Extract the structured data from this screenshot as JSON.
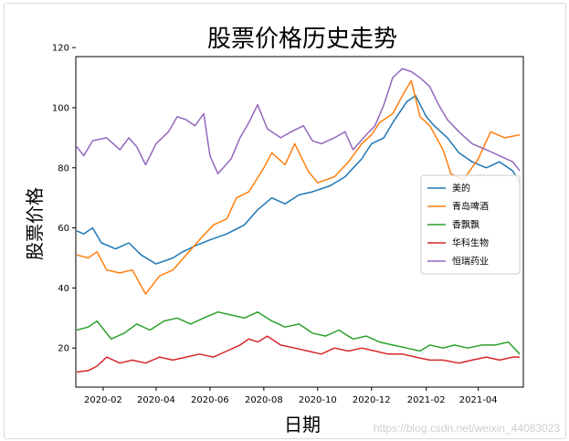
{
  "watermark": "https://blog.csdn.net/weixin_44083023",
  "chart_data": {
    "type": "line",
    "title": "股票价格历史走势",
    "xlabel": "日期",
    "ylabel": "股票价格",
    "ylim": [
      7,
      117
    ],
    "xlim": [
      "2020-01-01",
      "2021-05-22"
    ],
    "yticks": [
      20,
      40,
      60,
      80,
      100,
      120
    ],
    "xticks": [
      "2020-02",
      "2020-04",
      "2020-06",
      "2020-08",
      "2020-10",
      "2020-12",
      "2021-02",
      "2021-04"
    ],
    "legend_position": "center-right",
    "grid": false,
    "series": [
      {
        "name": "美的",
        "color": "#1f77b4",
        "points": [
          [
            "2020-01-02",
            59
          ],
          [
            "2020-01-10",
            58
          ],
          [
            "2020-01-20",
            60
          ],
          [
            "2020-01-30",
            55
          ],
          [
            "2020-02-15",
            53
          ],
          [
            "2020-03-01",
            55
          ],
          [
            "2020-03-15",
            51
          ],
          [
            "2020-04-01",
            48
          ],
          [
            "2020-04-20",
            50
          ],
          [
            "2020-05-01",
            52
          ],
          [
            "2020-05-15",
            54
          ],
          [
            "2020-06-01",
            56
          ],
          [
            "2020-06-20",
            58
          ],
          [
            "2020-07-10",
            61
          ],
          [
            "2020-07-25",
            66
          ],
          [
            "2020-08-10",
            70
          ],
          [
            "2020-08-25",
            68
          ],
          [
            "2020-09-10",
            71
          ],
          [
            "2020-09-25",
            72
          ],
          [
            "2020-10-15",
            74
          ],
          [
            "2020-11-01",
            77
          ],
          [
            "2020-11-20",
            83
          ],
          [
            "2020-12-01",
            88
          ],
          [
            "2020-12-15",
            90
          ],
          [
            "2020-12-25",
            95
          ],
          [
            "2021-01-10",
            102
          ],
          [
            "2021-01-20",
            104
          ],
          [
            "2021-02-01",
            97
          ],
          [
            "2021-02-10",
            94
          ],
          [
            "2021-02-25",
            90
          ],
          [
            "2021-03-10",
            85
          ],
          [
            "2021-03-25",
            82
          ],
          [
            "2021-04-10",
            80
          ],
          [
            "2021-04-25",
            82
          ],
          [
            "2021-05-10",
            79
          ],
          [
            "2021-05-18",
            75
          ]
        ]
      },
      {
        "name": "青岛啤酒",
        "color": "#ff7f0e",
        "points": [
          [
            "2020-01-02",
            51
          ],
          [
            "2020-01-15",
            50
          ],
          [
            "2020-01-25",
            52
          ],
          [
            "2020-02-05",
            46
          ],
          [
            "2020-02-20",
            45
          ],
          [
            "2020-03-05",
            46
          ],
          [
            "2020-03-20",
            38
          ],
          [
            "2020-04-05",
            44
          ],
          [
            "2020-04-20",
            46
          ],
          [
            "2020-05-05",
            51
          ],
          [
            "2020-05-20",
            56
          ],
          [
            "2020-06-05",
            61
          ],
          [
            "2020-06-20",
            63
          ],
          [
            "2020-07-01",
            70
          ],
          [
            "2020-07-15",
            72
          ],
          [
            "2020-08-01",
            80
          ],
          [
            "2020-08-10",
            85
          ],
          [
            "2020-08-25",
            81
          ],
          [
            "2020-09-05",
            88
          ],
          [
            "2020-09-20",
            79
          ],
          [
            "2020-10-01",
            75
          ],
          [
            "2020-10-20",
            77
          ],
          [
            "2020-11-05",
            82
          ],
          [
            "2020-11-20",
            88
          ],
          [
            "2020-12-01",
            91
          ],
          [
            "2020-12-10",
            95
          ],
          [
            "2020-12-25",
            98
          ],
          [
            "2021-01-05",
            104
          ],
          [
            "2021-01-15",
            109
          ],
          [
            "2021-01-25",
            97
          ],
          [
            "2021-02-05",
            94
          ],
          [
            "2021-02-20",
            86
          ],
          [
            "2021-03-01",
            78
          ],
          [
            "2021-03-15",
            76
          ],
          [
            "2021-04-01",
            83
          ],
          [
            "2021-04-15",
            92
          ],
          [
            "2021-05-01",
            90
          ],
          [
            "2021-05-18",
            91
          ]
        ]
      },
      {
        "name": "香飘飘",
        "color": "#2ca02c",
        "points": [
          [
            "2020-01-02",
            26
          ],
          [
            "2020-01-15",
            27
          ],
          [
            "2020-01-25",
            29
          ],
          [
            "2020-02-10",
            23
          ],
          [
            "2020-02-25",
            25
          ],
          [
            "2020-03-10",
            28
          ],
          [
            "2020-03-25",
            26
          ],
          [
            "2020-04-10",
            29
          ],
          [
            "2020-04-25",
            30
          ],
          [
            "2020-05-10",
            28
          ],
          [
            "2020-05-25",
            30
          ],
          [
            "2020-06-10",
            32
          ],
          [
            "2020-06-25",
            31
          ],
          [
            "2020-07-10",
            30
          ],
          [
            "2020-07-25",
            32
          ],
          [
            "2020-08-10",
            29
          ],
          [
            "2020-08-25",
            27
          ],
          [
            "2020-09-10",
            28
          ],
          [
            "2020-09-25",
            25
          ],
          [
            "2020-10-10",
            24
          ],
          [
            "2020-10-25",
            26
          ],
          [
            "2020-11-10",
            23
          ],
          [
            "2020-11-25",
            24
          ],
          [
            "2020-12-10",
            22
          ],
          [
            "2020-12-25",
            21
          ],
          [
            "2021-01-10",
            20
          ],
          [
            "2021-01-25",
            19
          ],
          [
            "2021-02-05",
            21
          ],
          [
            "2021-02-20",
            20
          ],
          [
            "2021-03-05",
            21
          ],
          [
            "2021-03-20",
            20
          ],
          [
            "2021-04-05",
            21
          ],
          [
            "2021-04-20",
            21
          ],
          [
            "2021-05-05",
            22
          ],
          [
            "2021-05-18",
            18
          ]
        ]
      },
      {
        "name": "华科生物",
        "color": "#d62728",
        "points": [
          [
            "2020-01-02",
            12
          ],
          [
            "2020-01-15",
            12.5
          ],
          [
            "2020-01-25",
            14
          ],
          [
            "2020-02-05",
            17
          ],
          [
            "2020-02-20",
            15
          ],
          [
            "2020-03-05",
            16
          ],
          [
            "2020-03-20",
            15
          ],
          [
            "2020-04-05",
            17
          ],
          [
            "2020-04-20",
            16
          ],
          [
            "2020-05-05",
            17
          ],
          [
            "2020-05-20",
            18
          ],
          [
            "2020-06-05",
            17
          ],
          [
            "2020-06-20",
            19
          ],
          [
            "2020-07-05",
            21
          ],
          [
            "2020-07-15",
            23
          ],
          [
            "2020-07-25",
            22
          ],
          [
            "2020-08-05",
            24
          ],
          [
            "2020-08-20",
            21
          ],
          [
            "2020-09-05",
            20
          ],
          [
            "2020-09-20",
            19
          ],
          [
            "2020-10-05",
            18
          ],
          [
            "2020-10-20",
            20
          ],
          [
            "2020-11-05",
            19
          ],
          [
            "2020-11-20",
            20
          ],
          [
            "2020-12-05",
            19
          ],
          [
            "2020-12-20",
            18
          ],
          [
            "2021-01-05",
            18
          ],
          [
            "2021-01-20",
            17
          ],
          [
            "2021-02-05",
            16
          ],
          [
            "2021-02-20",
            16
          ],
          [
            "2021-03-10",
            15
          ],
          [
            "2021-03-25",
            16
          ],
          [
            "2021-04-10",
            17
          ],
          [
            "2021-04-25",
            16
          ],
          [
            "2021-05-10",
            17
          ],
          [
            "2021-05-18",
            17
          ]
        ]
      },
      {
        "name": "恒瑞药业",
        "color": "#9467bd",
        "points": [
          [
            "2020-01-02",
            87
          ],
          [
            "2020-01-10",
            84
          ],
          [
            "2020-01-20",
            89
          ],
          [
            "2020-02-05",
            90
          ],
          [
            "2020-02-20",
            86
          ],
          [
            "2020-03-01",
            90
          ],
          [
            "2020-03-10",
            87
          ],
          [
            "2020-03-20",
            81
          ],
          [
            "2020-04-01",
            88
          ],
          [
            "2020-04-15",
            92
          ],
          [
            "2020-04-25",
            97
          ],
          [
            "2020-05-05",
            96
          ],
          [
            "2020-05-15",
            94
          ],
          [
            "2020-05-25",
            98
          ],
          [
            "2020-06-01",
            84
          ],
          [
            "2020-06-10",
            78
          ],
          [
            "2020-06-25",
            83
          ],
          [
            "2020-07-05",
            90
          ],
          [
            "2020-07-15",
            95
          ],
          [
            "2020-07-25",
            101
          ],
          [
            "2020-08-05",
            93
          ],
          [
            "2020-08-20",
            90
          ],
          [
            "2020-09-01",
            92
          ],
          [
            "2020-09-15",
            94
          ],
          [
            "2020-09-25",
            89
          ],
          [
            "2020-10-05",
            88
          ],
          [
            "2020-10-20",
            90
          ],
          [
            "2020-11-01",
            92
          ],
          [
            "2020-11-10",
            86
          ],
          [
            "2020-11-25",
            91
          ],
          [
            "2020-12-05",
            94
          ],
          [
            "2020-12-15",
            101
          ],
          [
            "2020-12-25",
            110
          ],
          [
            "2021-01-05",
            113
          ],
          [
            "2021-01-15",
            112
          ],
          [
            "2021-01-25",
            110
          ],
          [
            "2021-02-05",
            107
          ],
          [
            "2021-02-15",
            101
          ],
          [
            "2021-02-25",
            96
          ],
          [
            "2021-03-10",
            92
          ],
          [
            "2021-03-25",
            88
          ],
          [
            "2021-04-10",
            86
          ],
          [
            "2021-04-25",
            84
          ],
          [
            "2021-05-10",
            82
          ],
          [
            "2021-05-18",
            79
          ]
        ]
      }
    ]
  }
}
